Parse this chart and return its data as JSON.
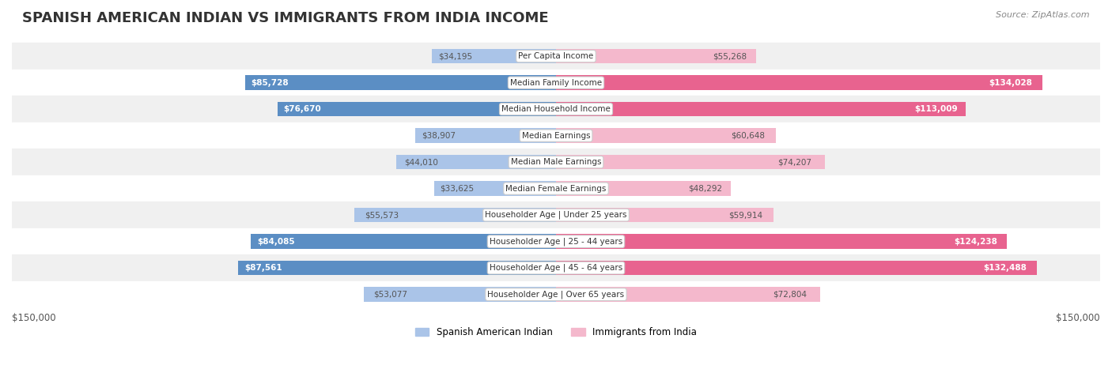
{
  "title": "SPANISH AMERICAN INDIAN VS IMMIGRANTS FROM INDIA INCOME",
  "source": "Source: ZipAtlas.com",
  "categories": [
    "Per Capita Income",
    "Median Family Income",
    "Median Household Income",
    "Median Earnings",
    "Median Male Earnings",
    "Median Female Earnings",
    "Householder Age | Under 25 years",
    "Householder Age | 25 - 44 years",
    "Householder Age | 45 - 64 years",
    "Householder Age | Over 65 years"
  ],
  "left_values": [
    34195,
    85728,
    76670,
    38907,
    44010,
    33625,
    55573,
    84085,
    87561,
    53077
  ],
  "right_values": [
    55268,
    134028,
    113009,
    60648,
    74207,
    48292,
    59914,
    124238,
    132488,
    72804
  ],
  "left_labels": [
    "$34,195",
    "$85,728",
    "$76,670",
    "$38,907",
    "$44,010",
    "$33,625",
    "$55,573",
    "$84,085",
    "$87,561",
    "$53,077"
  ],
  "right_labels": [
    "$55,268",
    "$134,028",
    "$113,009",
    "$60,648",
    "$74,207",
    "$48,292",
    "$59,914",
    "$124,238",
    "$132,488",
    "$72,804"
  ],
  "left_color_light": "#aac4e8",
  "left_color_dark": "#5b8ec4",
  "right_color_light": "#f4b8cc",
  "right_color_dark": "#e8638f",
  "max_value": 150000,
  "xlabel_left": "$150,000",
  "xlabel_right": "$150,000",
  "legend_left": "Spanish American Indian",
  "legend_right": "Immigrants from India",
  "background_row": "#f0f0f0",
  "background_white": "#ffffff",
  "title_fontsize": 13,
  "label_fontsize": 8.5
}
